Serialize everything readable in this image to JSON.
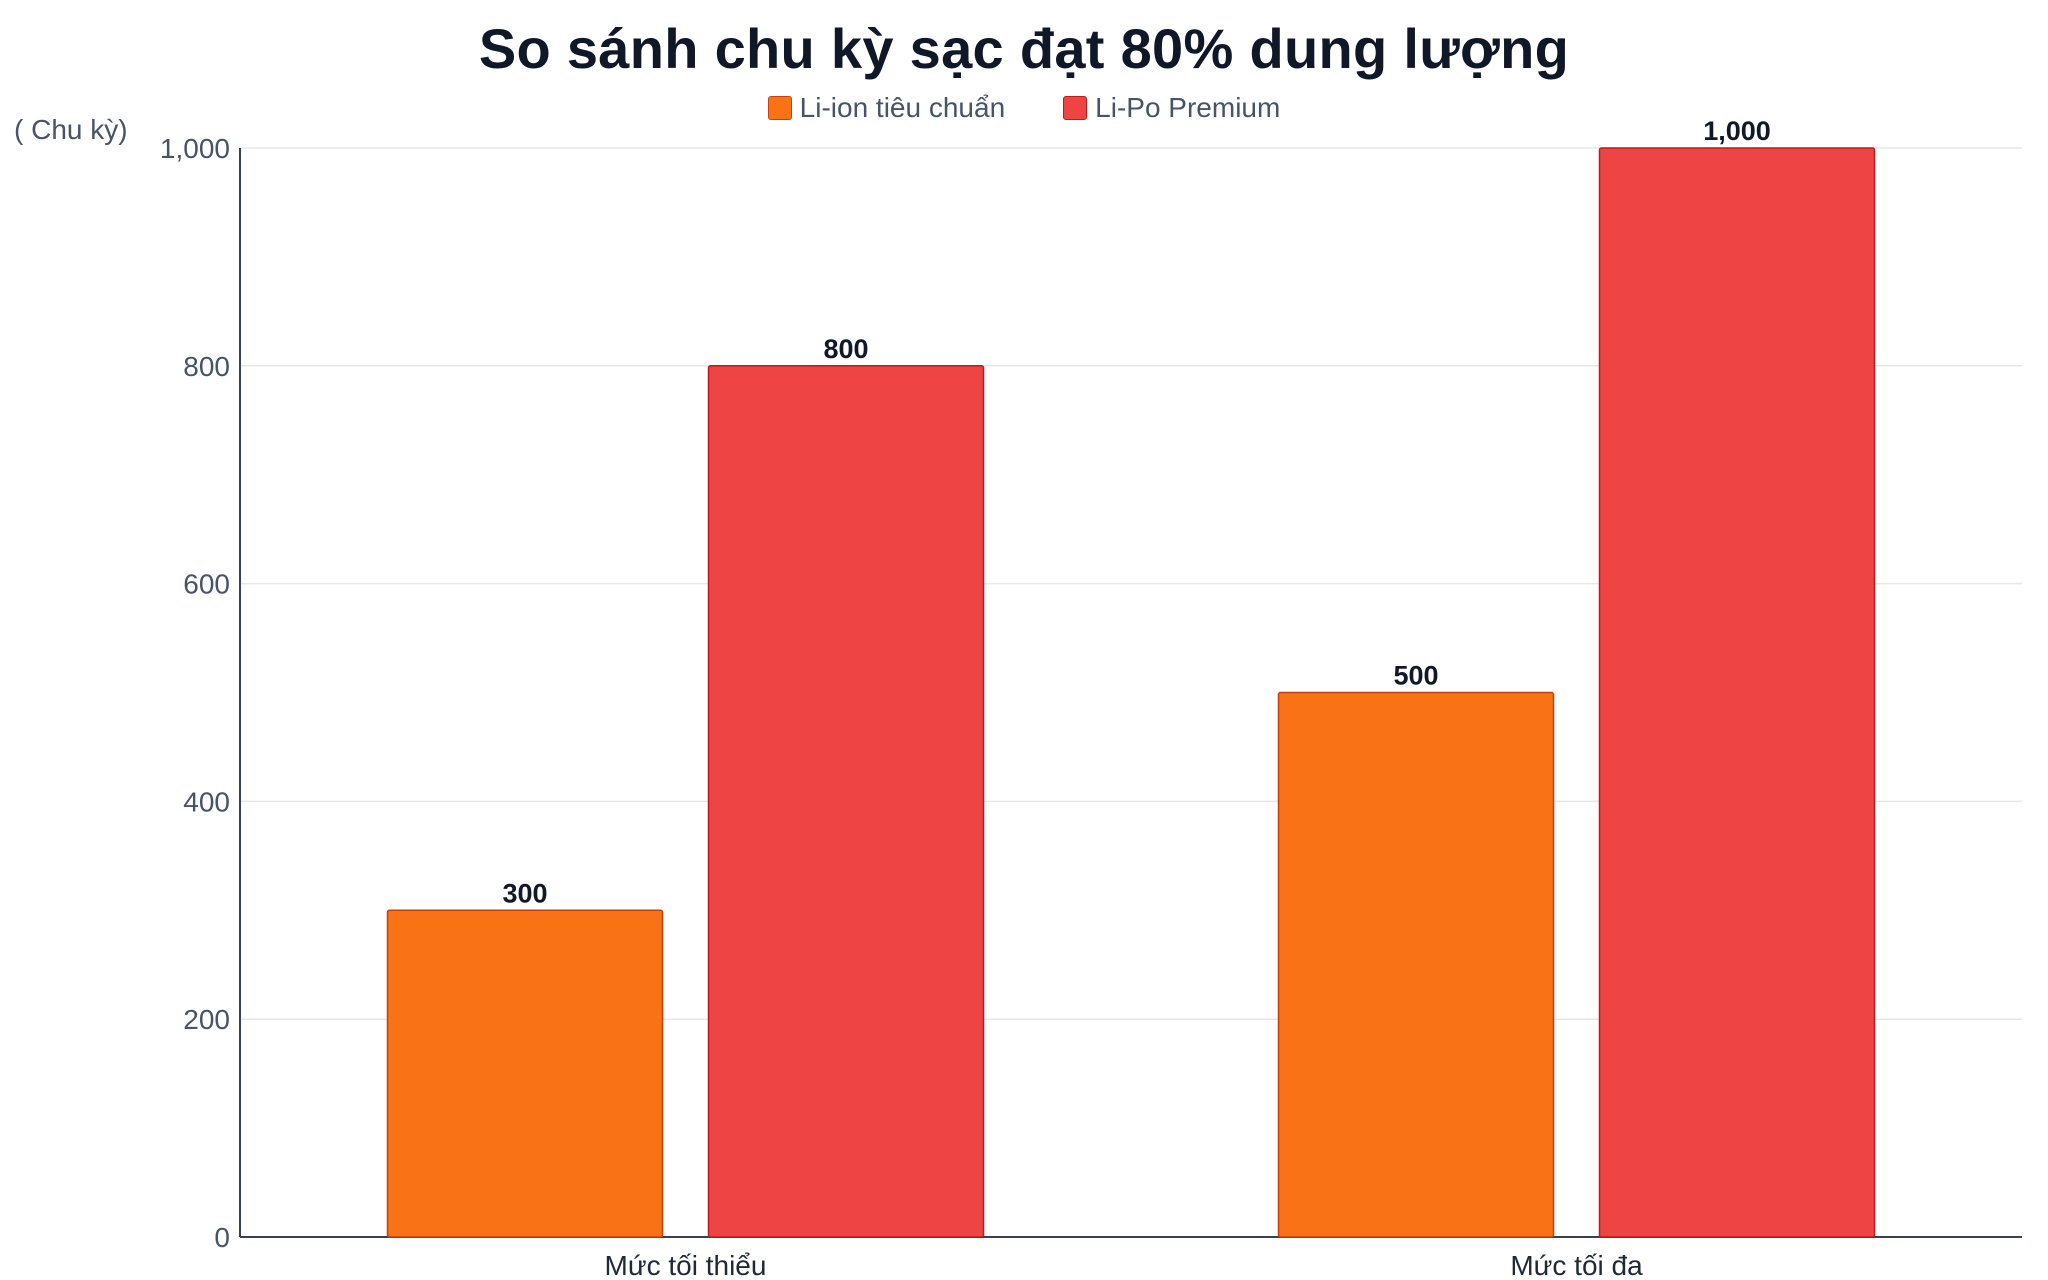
{
  "chart_data": {
    "type": "bar",
    "title": "So sánh chu kỳ sạc đạt 80% dung lượng",
    "ylabel": "( Chu kỳ)",
    "xlabel": "",
    "categories": [
      "Mức tối thiểu",
      "Mức tối đa"
    ],
    "series": [
      {
        "name": "Li-ion tiêu chuẩn",
        "values": [
          300,
          500
        ],
        "labels": [
          "300",
          "500"
        ],
        "color": "#F97316",
        "stroke": "#C2410C"
      },
      {
        "name": "Li-Po Premium",
        "values": [
          800,
          1000
        ],
        "labels": [
          "800",
          "1,000"
        ],
        "color": "#EF4444",
        "stroke": "#B91C1C"
      }
    ],
    "ylim": [
      0,
      1000
    ],
    "yticks": [
      0,
      200,
      400,
      600,
      800,
      1000
    ],
    "ytick_labels": [
      "0",
      "200",
      "400",
      "600",
      "800",
      "1,000"
    ],
    "grid": true,
    "legend": "top-center",
    "data_labels": true
  }
}
